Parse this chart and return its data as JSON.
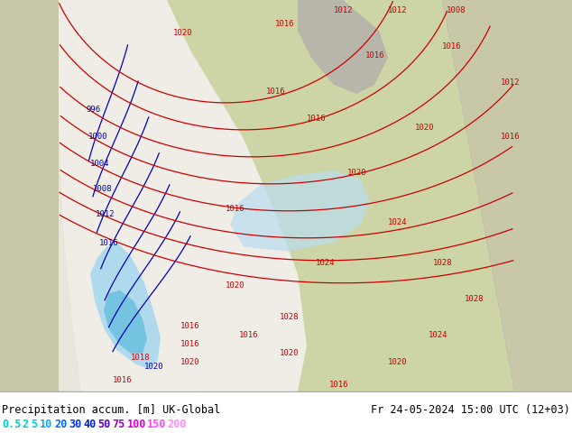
{
  "title_left": "Precipitation accum. [m] UK-Global",
  "title_right": "Fr 24-05-2024 15:00 UTC (12+03)",
  "legend_labels": [
    "0.5",
    "2",
    "5",
    "10",
    "20",
    "30",
    "40",
    "50",
    "75",
    "100",
    "150",
    "200"
  ],
  "legend_colors_cyan_group": [
    "#00d0d0",
    "#00d0d0",
    "#00d0d0"
  ],
  "legend_colors_blue_group": [
    "#0088ff",
    "#0044ff",
    "#0000ee",
    "#0000cc"
  ],
  "legend_colors_purple_group": [
    "#8800cc"
  ],
  "legend_colors_magenta_group": [
    "#cc00cc",
    "#ee00ee",
    "#ff44ff",
    "#ff88ff"
  ],
  "fig_width": 6.34,
  "fig_height": 4.9,
  "dpi": 100,
  "footer_bg": "#ffffff",
  "map_outer_bg": "#c8c8a8",
  "map_cone_bg": "#e8e6e0",
  "map_land_light": "#d8d4c0",
  "map_land_green": "#c8d4a0",
  "map_sea_blue": "#add8e6",
  "cone_outline_color": "#aaaaaa",
  "isobar_red_color": "#cc0000",
  "isobar_blue_color": "#0000bb",
  "precip_blue_light": "#aadcee",
  "precip_blue_mid": "#66bbdd",
  "precip_green_light": "#b8e8b0"
}
